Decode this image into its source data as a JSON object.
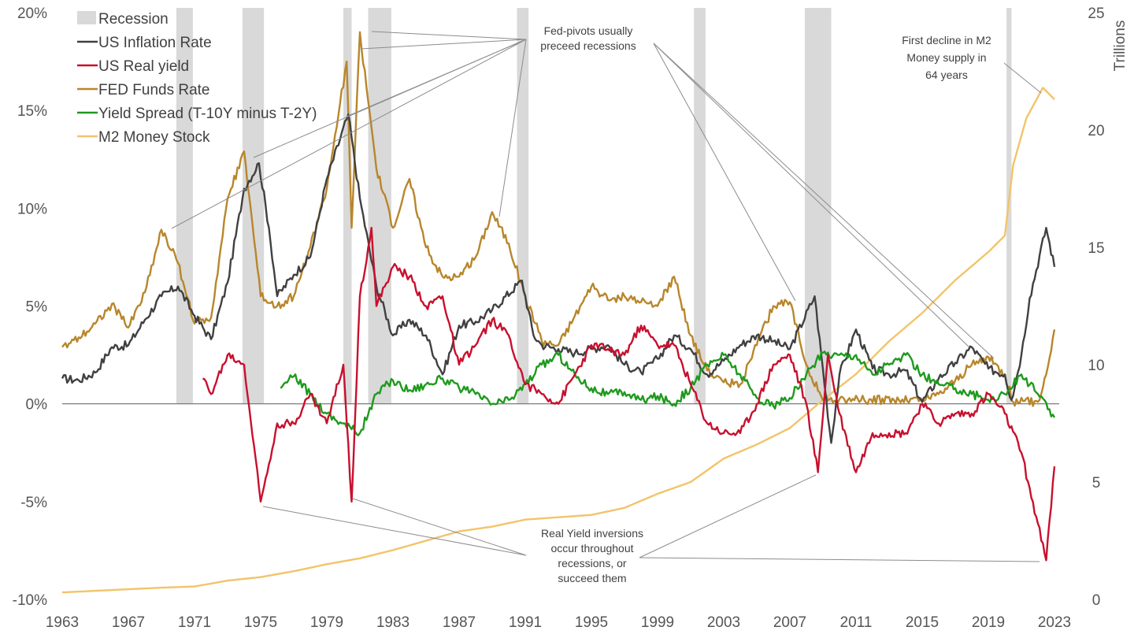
{
  "chart_data": {
    "type": "line",
    "title": "",
    "xlabel": "",
    "ylabel_left": "",
    "ylabel_right": "Trillions",
    "x_ticks": [
      "1963",
      "1967",
      "1971",
      "1975",
      "1979",
      "1983",
      "1987",
      "1991",
      "1995",
      "1999",
      "2003",
      "2007",
      "2011",
      "2015",
      "2019",
      "2023"
    ],
    "y_left_ticks": [
      "20%",
      "15%",
      "10%",
      "5%",
      "0%",
      "-5%",
      "-10%"
    ],
    "y_right_ticks": [
      "25",
      "20",
      "15",
      "10",
      "5",
      "0"
    ],
    "y_left_range": [
      -10,
      20
    ],
    "y_right_range": [
      0,
      25
    ],
    "x_range": [
      1963,
      2023
    ],
    "recessions": [
      [
        1969.9,
        1970.9
      ],
      [
        1973.9,
        1975.2
      ],
      [
        1980.0,
        1980.5
      ],
      [
        1981.5,
        1982.9
      ],
      [
        1990.5,
        1991.2
      ],
      [
        2001.2,
        2001.9
      ],
      [
        2007.9,
        2009.5
      ],
      [
        2020.1,
        2020.4
      ]
    ],
    "legend": [
      {
        "name": "Recession",
        "color": "#d9d9d9",
        "kind": "box"
      },
      {
        "name": "US Inflation Rate",
        "color": "#404040",
        "kind": "line"
      },
      {
        "name": "US Real yield",
        "color": "#c8102e",
        "kind": "line"
      },
      {
        "name": "FED Funds Rate",
        "color": "#b8862b",
        "kind": "line"
      },
      {
        "name": "Yield Spread (T-10Y minus T-2Y)",
        "color": "#1e9a1e",
        "kind": "line"
      },
      {
        "name": "M2 Money Stock",
        "color": "#f2c46a",
        "kind": "line"
      }
    ],
    "series": [
      {
        "name": "US Inflation Rate",
        "axis": "left",
        "color": "#404040",
        "points": [
          [
            1963,
            1.3
          ],
          [
            1964,
            1.2
          ],
          [
            1965,
            1.6
          ],
          [
            1966,
            2.9
          ],
          [
            1967,
            3.0
          ],
          [
            1968,
            4.3
          ],
          [
            1969,
            5.5
          ],
          [
            1970,
            6.0
          ],
          [
            1971,
            4.5
          ],
          [
            1972,
            3.3
          ],
          [
            1973,
            6.2
          ],
          [
            1974,
            11.0
          ],
          [
            1974.9,
            12.3
          ],
          [
            1975.5,
            9.0
          ],
          [
            1976,
            5.5
          ],
          [
            1977,
            6.6
          ],
          [
            1978,
            7.5
          ],
          [
            1979,
            11.5
          ],
          [
            1980.3,
            14.8
          ],
          [
            1981,
            10.5
          ],
          [
            1982,
            6.0
          ],
          [
            1983,
            3.5
          ],
          [
            1984,
            4.3
          ],
          [
            1985,
            3.5
          ],
          [
            1986,
            1.5
          ],
          [
            1987,
            4.0
          ],
          [
            1988,
            4.2
          ],
          [
            1989,
            4.8
          ],
          [
            1990.8,
            6.3
          ],
          [
            1991.5,
            3.5
          ],
          [
            1992,
            3.0
          ],
          [
            1993,
            2.8
          ],
          [
            1994,
            2.6
          ],
          [
            1995,
            2.8
          ],
          [
            1996,
            3.0
          ],
          [
            1997,
            2.0
          ],
          [
            1998,
            1.6
          ],
          [
            1999,
            2.3
          ],
          [
            2000,
            3.5
          ],
          [
            2001,
            2.8
          ],
          [
            2002,
            1.5
          ],
          [
            2003,
            2.2
          ],
          [
            2004,
            3.0
          ],
          [
            2005,
            3.5
          ],
          [
            2006,
            3.2
          ],
          [
            2007,
            2.8
          ],
          [
            2008.5,
            5.5
          ],
          [
            2009.5,
            -2.0
          ],
          [
            2010,
            1.5
          ],
          [
            2011,
            3.8
          ],
          [
            2012,
            1.8
          ],
          [
            2013,
            1.5
          ],
          [
            2014,
            1.7
          ],
          [
            2015,
            0.1
          ],
          [
            2016,
            1.3
          ],
          [
            2017,
            2.1
          ],
          [
            2018,
            2.9
          ],
          [
            2019,
            1.8
          ],
          [
            2020,
            1.5
          ],
          [
            2020.4,
            0.2
          ],
          [
            2021,
            2.5
          ],
          [
            2021.5,
            5.4
          ],
          [
            2022.5,
            9.0
          ],
          [
            2023,
            7.0
          ]
        ]
      },
      {
        "name": "US Real yield",
        "axis": "left",
        "color": "#c8102e",
        "points": [
          [
            1971.5,
            1.3
          ],
          [
            1972,
            0.5
          ],
          [
            1973,
            2.5
          ],
          [
            1974,
            2.0
          ],
          [
            1975,
            -5.0
          ],
          [
            1976,
            -1.0
          ],
          [
            1977,
            -1.0
          ],
          [
            1978,
            0.5
          ],
          [
            1979,
            -1.0
          ],
          [
            1980,
            2.0
          ],
          [
            1980.5,
            -5.0
          ],
          [
            1981,
            5.5
          ],
          [
            1981.7,
            9.0
          ],
          [
            1982,
            5.0
          ],
          [
            1983,
            7.0
          ],
          [
            1984,
            6.5
          ],
          [
            1985,
            5.0
          ],
          [
            1986,
            5.5
          ],
          [
            1987,
            2.0
          ],
          [
            1988,
            3.0
          ],
          [
            1989,
            4.3
          ],
          [
            1990,
            3.5
          ],
          [
            1991,
            1.0
          ],
          [
            1992,
            0.5
          ],
          [
            1993,
            0.0
          ],
          [
            1994,
            1.5
          ],
          [
            1995,
            3.0
          ],
          [
            1996,
            2.8
          ],
          [
            1997,
            2.5
          ],
          [
            1998,
            4.0
          ],
          [
            1999,
            3.0
          ],
          [
            2000,
            3.0
          ],
          [
            2001,
            1.0
          ],
          [
            2002,
            -1.0
          ],
          [
            2003,
            -1.5
          ],
          [
            2004,
            -1.5
          ],
          [
            2005,
            0.0
          ],
          [
            2006,
            2.0
          ],
          [
            2007,
            2.5
          ],
          [
            2008,
            0.0
          ],
          [
            2008.7,
            -3.5
          ],
          [
            2009.3,
            2.5
          ],
          [
            2010,
            -0.5
          ],
          [
            2011,
            -3.5
          ],
          [
            2012,
            -1.5
          ],
          [
            2013,
            -1.5
          ],
          [
            2014,
            -1.5
          ],
          [
            2015,
            0.0
          ],
          [
            2016,
            -1.0
          ],
          [
            2017,
            -0.5
          ],
          [
            2018,
            -0.5
          ],
          [
            2019,
            0.5
          ],
          [
            2020,
            -0.5
          ],
          [
            2021,
            -2.5
          ],
          [
            2022.5,
            -8.0
          ],
          [
            2023,
            -3.2
          ]
        ]
      },
      {
        "name": "FED Funds Rate",
        "axis": "left",
        "color": "#b8862b",
        "points": [
          [
            1963,
            2.9
          ],
          [
            1964,
            3.4
          ],
          [
            1965,
            4.1
          ],
          [
            1966,
            5.1
          ],
          [
            1967,
            3.9
          ],
          [
            1968,
            5.7
          ],
          [
            1969,
            8.9
          ],
          [
            1970,
            7.2
          ],
          [
            1971,
            4.1
          ],
          [
            1972,
            4.4
          ],
          [
            1973,
            10.5
          ],
          [
            1974,
            12.9
          ],
          [
            1975,
            5.5
          ],
          [
            1976,
            5.0
          ],
          [
            1977,
            5.5
          ],
          [
            1978,
            8.0
          ],
          [
            1979,
            11.0
          ],
          [
            1980.2,
            17.5
          ],
          [
            1980.5,
            9.0
          ],
          [
            1981,
            19.0
          ],
          [
            1982,
            12.0
          ],
          [
            1983,
            9.0
          ],
          [
            1984,
            11.5
          ],
          [
            1985,
            8.0
          ],
          [
            1986,
            6.5
          ],
          [
            1987,
            6.5
          ],
          [
            1988,
            7.5
          ],
          [
            1989,
            9.8
          ],
          [
            1990,
            8.2
          ],
          [
            1991,
            5.5
          ],
          [
            1992,
            3.2
          ],
          [
            1993,
            3.0
          ],
          [
            1994,
            4.5
          ],
          [
            1995,
            6.0
          ],
          [
            1996,
            5.3
          ],
          [
            1997,
            5.5
          ],
          [
            1998,
            5.2
          ],
          [
            1999,
            5.0
          ],
          [
            2000,
            6.5
          ],
          [
            2001,
            3.5
          ],
          [
            2002,
            1.7
          ],
          [
            2003,
            1.1
          ],
          [
            2004,
            1.0
          ],
          [
            2005,
            3.0
          ],
          [
            2006,
            5.0
          ],
          [
            2007,
            5.2
          ],
          [
            2008,
            2.0
          ],
          [
            2009,
            0.2
          ],
          [
            2015,
            0.2
          ],
          [
            2016,
            0.5
          ],
          [
            2017,
            1.2
          ],
          [
            2018,
            2.0
          ],
          [
            2019,
            2.4
          ],
          [
            2020,
            1.5
          ],
          [
            2020.5,
            0.1
          ],
          [
            2022,
            0.1
          ],
          [
            2022.5,
            1.5
          ],
          [
            2023,
            3.8
          ]
        ]
      },
      {
        "name": "Yield Spread (T-10Y minus T-2Y)",
        "axis": "left",
        "color": "#1e9a1e",
        "points": [
          [
            1976.2,
            0.8
          ],
          [
            1977,
            1.4
          ],
          [
            1978,
            0.5
          ],
          [
            1979,
            -0.5
          ],
          [
            1980,
            -1.0
          ],
          [
            1981,
            -1.5
          ],
          [
            1982,
            0.5
          ],
          [
            1983,
            1.2
          ],
          [
            1984,
            0.7
          ],
          [
            1985,
            1.0
          ],
          [
            1986,
            1.3
          ],
          [
            1987,
            0.8
          ],
          [
            1988,
            0.5
          ],
          [
            1989,
            0.0
          ],
          [
            1990,
            0.2
          ],
          [
            1991,
            1.0
          ],
          [
            1992,
            2.0
          ],
          [
            1993,
            2.5
          ],
          [
            1994,
            1.5
          ],
          [
            1995,
            0.8
          ],
          [
            1996,
            0.5
          ],
          [
            1997,
            0.6
          ],
          [
            1998,
            0.2
          ],
          [
            1999,
            0.4
          ],
          [
            2000,
            0.0
          ],
          [
            2001,
            0.8
          ],
          [
            2002,
            2.0
          ],
          [
            2003,
            2.5
          ],
          [
            2004,
            1.5
          ],
          [
            2005,
            0.3
          ],
          [
            2006,
            -0.1
          ],
          [
            2007,
            0.3
          ],
          [
            2008,
            1.5
          ],
          [
            2009,
            2.6
          ],
          [
            2010,
            2.5
          ],
          [
            2011,
            2.5
          ],
          [
            2012,
            1.5
          ],
          [
            2013,
            2.0
          ],
          [
            2014,
            2.5
          ],
          [
            2015,
            1.5
          ],
          [
            2016,
            1.0
          ],
          [
            2017,
            0.8
          ],
          [
            2018,
            0.5
          ],
          [
            2019,
            0.2
          ],
          [
            2020,
            0.5
          ],
          [
            2021,
            1.5
          ],
          [
            2022,
            0.5
          ],
          [
            2023,
            -0.7
          ]
        ]
      },
      {
        "name": "M2 Money Stock",
        "axis": "right",
        "color": "#f2c46a",
        "points": [
          [
            1963,
            0.3
          ],
          [
            1966,
            0.4
          ],
          [
            1969,
            0.5
          ],
          [
            1971,
            0.55
          ],
          [
            1973,
            0.8
          ],
          [
            1975,
            0.95
          ],
          [
            1977,
            1.2
          ],
          [
            1979,
            1.5
          ],
          [
            1981,
            1.75
          ],
          [
            1983,
            2.1
          ],
          [
            1985,
            2.5
          ],
          [
            1987,
            2.9
          ],
          [
            1989,
            3.1
          ],
          [
            1991,
            3.4
          ],
          [
            1993,
            3.5
          ],
          [
            1995,
            3.6
          ],
          [
            1997,
            3.9
          ],
          [
            1999,
            4.5
          ],
          [
            2001,
            5.0
          ],
          [
            2003,
            6.0
          ],
          [
            2005,
            6.6
          ],
          [
            2007,
            7.3
          ],
          [
            2009,
            8.5
          ],
          [
            2011,
            9.6
          ],
          [
            2013,
            11.0
          ],
          [
            2015,
            12.2
          ],
          [
            2017,
            13.6
          ],
          [
            2019,
            14.8
          ],
          [
            2020,
            15.5
          ],
          [
            2020.5,
            18.5
          ],
          [
            2021.3,
            20.5
          ],
          [
            2022.3,
            21.8
          ],
          [
            2023,
            21.3
          ]
        ]
      }
    ],
    "annotations": [
      {
        "text_lines": [
          "Fed-pivots usually",
          "preceed recessions"
        ]
      },
      {
        "text_lines": [
          "First decline in M2",
          "Money supply in",
          "64 years"
        ]
      },
      {
        "text_lines": [
          "Real Yield inversions",
          "occur throughout",
          "recessions, or",
          "succeed them"
        ]
      }
    ]
  }
}
